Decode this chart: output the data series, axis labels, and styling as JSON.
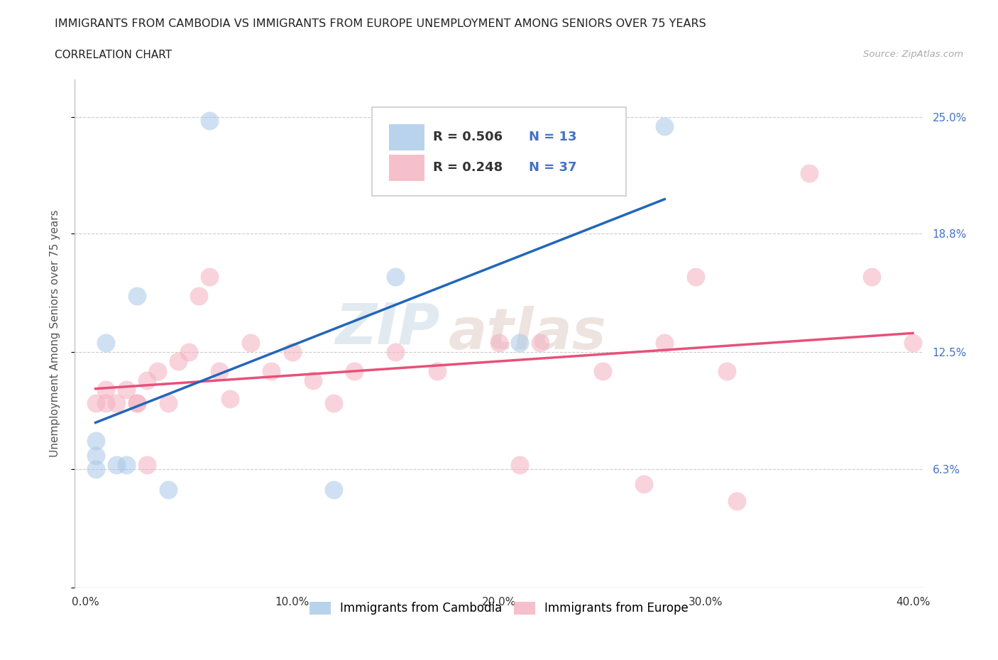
{
  "title": "IMMIGRANTS FROM CAMBODIA VS IMMIGRANTS FROM EUROPE UNEMPLOYMENT AMONG SENIORS OVER 75 YEARS",
  "subtitle": "CORRELATION CHART",
  "source": "Source: ZipAtlas.com",
  "ylabel": "Unemployment Among Seniors over 75 years",
  "xlim": [
    -0.005,
    0.405
  ],
  "ylim": [
    0.0,
    0.27
  ],
  "xticks": [
    0.0,
    0.1,
    0.2,
    0.3,
    0.4
  ],
  "xtick_labels": [
    "0.0%",
    "10.0%",
    "20.0%",
    "30.0%",
    "40.0%"
  ],
  "yticks": [
    0.0,
    0.063,
    0.125,
    0.188,
    0.25
  ],
  "ytick_labels_right": [
    "",
    "6.3%",
    "12.5%",
    "18.8%",
    "25.0%"
  ],
  "grid_color": "#cccccc",
  "background_color": "#ffffff",
  "cambodia_color": "#a8c8e8",
  "europe_color": "#f4afc0",
  "cambodia_line_color": "#2266bb",
  "europe_line_color": "#e8507a",
  "legend_R_cambodia": "R = 0.506",
  "legend_N_cambodia": "N = 13",
  "legend_R_europe": "R = 0.248",
  "legend_N_europe": "N = 37",
  "watermark_zip": "ZIP",
  "watermark_atlas": "atlas",
  "cambodia_x": [
    0.005,
    0.005,
    0.005,
    0.01,
    0.015,
    0.02,
    0.025,
    0.04,
    0.06,
    0.12,
    0.15,
    0.21,
    0.28
  ],
  "cambodia_y": [
    0.063,
    0.07,
    0.078,
    0.13,
    0.065,
    0.065,
    0.155,
    0.052,
    0.248,
    0.052,
    0.165,
    0.13,
    0.245
  ],
  "europe_x": [
    0.005,
    0.01,
    0.01,
    0.015,
    0.02,
    0.025,
    0.025,
    0.03,
    0.03,
    0.035,
    0.04,
    0.045,
    0.05,
    0.055,
    0.06,
    0.065,
    0.07,
    0.08,
    0.09,
    0.1,
    0.11,
    0.12,
    0.13,
    0.15,
    0.17,
    0.2,
    0.21,
    0.22,
    0.25,
    0.27,
    0.28,
    0.295,
    0.31,
    0.315,
    0.35,
    0.38,
    0.4
  ],
  "europe_y": [
    0.098,
    0.098,
    0.105,
    0.098,
    0.105,
    0.098,
    0.098,
    0.11,
    0.065,
    0.115,
    0.098,
    0.12,
    0.125,
    0.155,
    0.165,
    0.115,
    0.1,
    0.13,
    0.115,
    0.125,
    0.11,
    0.098,
    0.115,
    0.125,
    0.115,
    0.13,
    0.065,
    0.13,
    0.115,
    0.055,
    0.13,
    0.165,
    0.115,
    0.046,
    0.22,
    0.165,
    0.13
  ],
  "dot_size": 350,
  "dot_alpha": 0.55
}
